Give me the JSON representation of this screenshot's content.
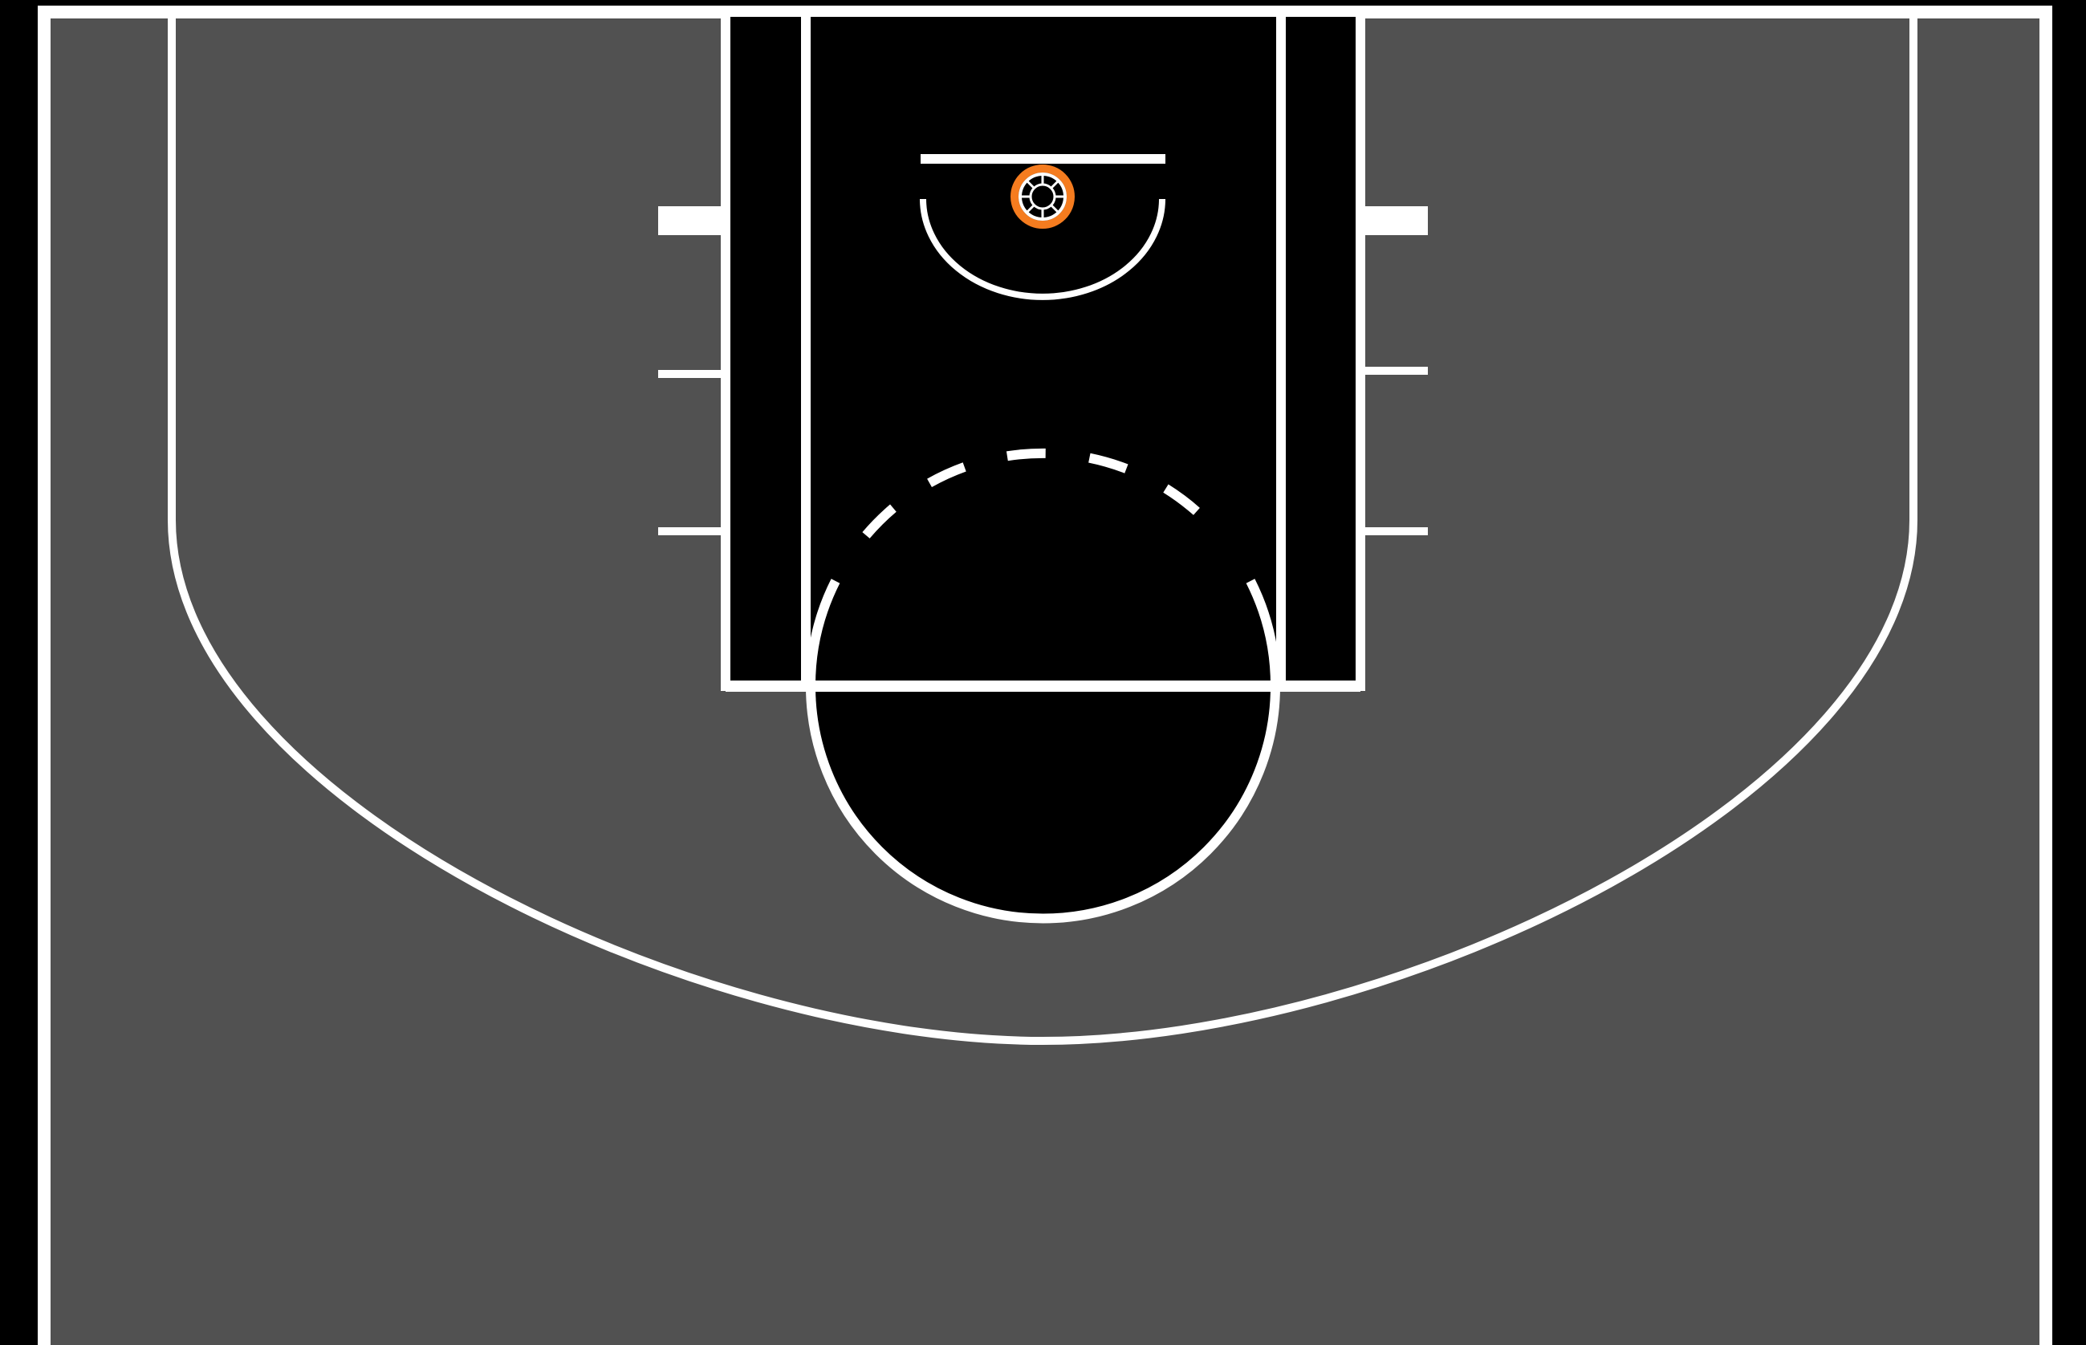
{
  "court": {
    "view": "half-court",
    "colors": {
      "background": "#000000",
      "floor": "#515151",
      "paint": "#000000",
      "lines": "#ffffff",
      "rim": "#f57c1f",
      "net": "#ffffff"
    },
    "elements": [
      "boundary",
      "three-point-line",
      "lane",
      "inner-lane",
      "free-throw-line",
      "free-throw-circle",
      "backboard",
      "rim",
      "restricted-area",
      "lane-hash-marks"
    ]
  }
}
